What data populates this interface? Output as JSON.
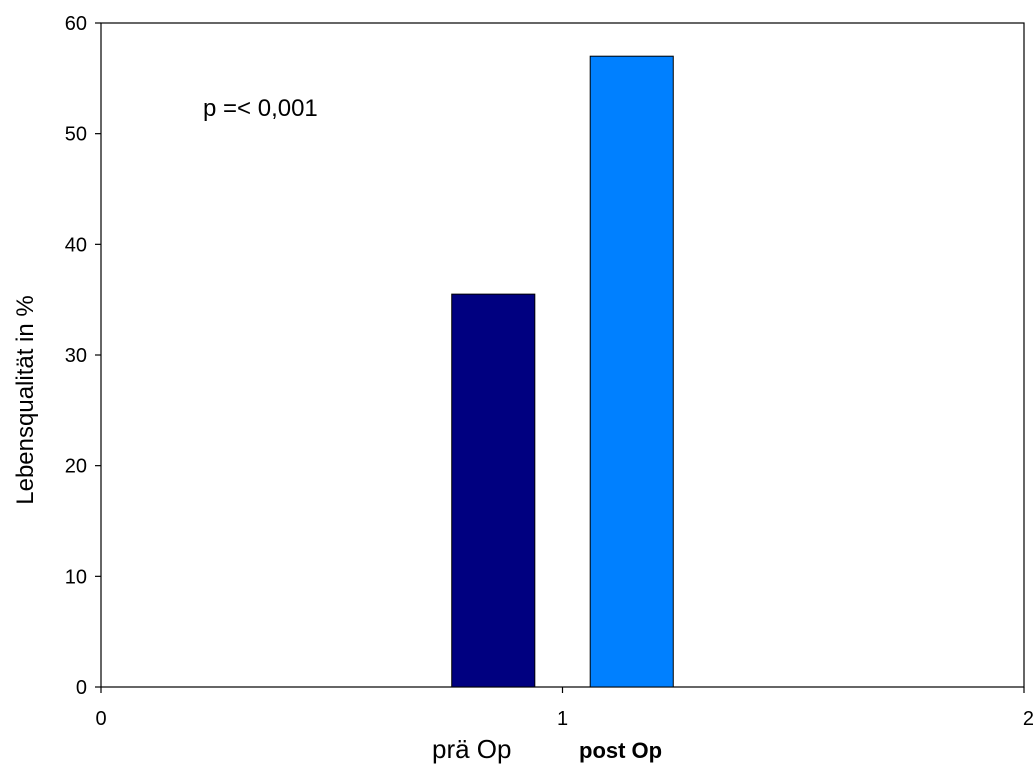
{
  "chart_data": {
    "type": "bar",
    "xlim": [
      0,
      2
    ],
    "ylim": [
      0,
      60
    ],
    "xticks": [
      "0",
      "1",
      "2"
    ],
    "yticks": [
      "0",
      "10",
      "20",
      "30",
      "40",
      "50",
      "60"
    ],
    "ylabel": "Lebensqualität in %",
    "annotation": "p =< 0,001",
    "grid": false,
    "series": [
      {
        "name": "prä Op",
        "x": 0.85,
        "width": 0.18,
        "value": 35.5,
        "color": "#000080"
      },
      {
        "name": "post Op",
        "x": 1.15,
        "width": 0.18,
        "value": 57,
        "color": "#0080FF"
      }
    ]
  }
}
